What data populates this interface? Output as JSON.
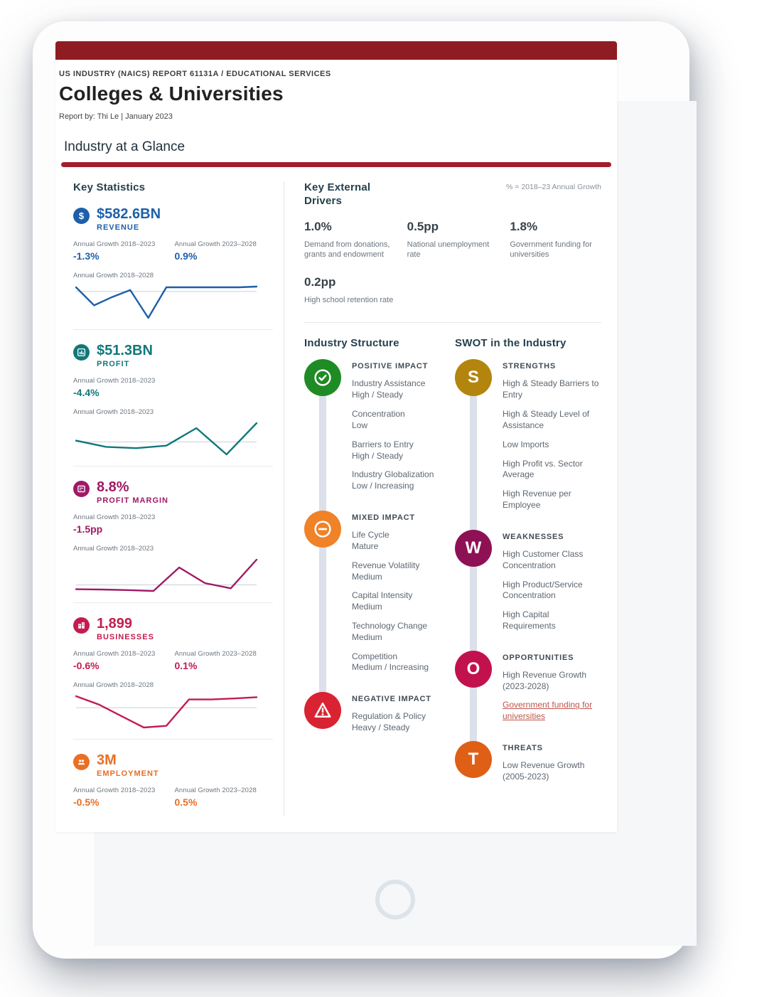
{
  "colors": {
    "maroon": "#8e1c22",
    "rule": "#a31e2d",
    "blue": "#1d5fa9",
    "teal": "#11787b",
    "magenta": "#9e1a66",
    "crimson": "#c31d50",
    "orange": "#e96f24",
    "green": "#1f8b24",
    "amber": "#f08228",
    "red": "#da2332",
    "gold": "#b3850e",
    "plum": "#8e1155",
    "opp": "#c2124e",
    "threat": "#df5f16"
  },
  "report": {
    "eyebrow": "US INDUSTRY (NAICS) REPORT 61131A / EDUCATIONAL SERVICES",
    "title": "Colleges & Universities",
    "byline": "Report by: Thi Le  |  January 2023",
    "section_title": "Industry at a Glance"
  },
  "key_statistics": {
    "heading": "Key Statistics",
    "stats": [
      {
        "value": "$582.6BN",
        "label": "REVENUE",
        "icon": "dollar-icon",
        "growths": [
          {
            "label": "Annual Growth 2018–2023",
            "value": "-1.3%"
          },
          {
            "label": "Annual Growth 2023–2028",
            "value": "0.9%"
          }
        ],
        "spark_label": "Annual Growth 2018–2028"
      },
      {
        "value": "$51.3BN",
        "label": "PROFIT",
        "icon": "bar-chart-icon",
        "growths": [
          {
            "label": "Annual Growth 2018–2023",
            "value": "-4.4%"
          }
        ],
        "spark_label": "Annual Growth 2018–2023"
      },
      {
        "value": "8.8%",
        "label": "PROFIT MARGIN",
        "icon": "ledger-icon",
        "growths": [
          {
            "label": "Annual Growth 2018–2023",
            "value": "-1.5pp"
          }
        ],
        "spark_label": "Annual Growth 2018–2023"
      },
      {
        "value": "1,899",
        "label": "BUSINESSES",
        "icon": "building-icon",
        "growths": [
          {
            "label": "Annual Growth 2018–2023",
            "value": "-0.6%"
          },
          {
            "label": "Annual Growth 2023–2028",
            "value": "0.1%"
          }
        ],
        "spark_label": "Annual Growth 2018–2028"
      },
      {
        "value": "3M",
        "label": "EMPLOYMENT",
        "icon": "people-icon",
        "growths": [
          {
            "label": "Annual Growth 2018–2023",
            "value": "-0.5%"
          },
          {
            "label": "Annual Growth 2023–2028",
            "value": "0.5%"
          }
        ]
      }
    ]
  },
  "drivers": {
    "heading": "Key External Drivers",
    "note": "% = 2018–23 Annual Growth",
    "items": [
      {
        "value": "1.0%",
        "label": "Demand from donations, grants and endowment"
      },
      {
        "value": "0.5pp",
        "label": "National unemployment rate"
      },
      {
        "value": "1.8%",
        "label": "Government funding for universities"
      },
      {
        "value": "0.2pp",
        "label": "High school retention rate"
      }
    ]
  },
  "structure": {
    "heading": "Industry Structure",
    "groups": [
      {
        "title": "POSITIVE IMPACT",
        "icon": "check-circle-icon",
        "items": [
          {
            "name": "Industry Assistance",
            "value": "High / Steady"
          },
          {
            "name": "Concentration",
            "value": "Low"
          },
          {
            "name": "Barriers to Entry",
            "value": "High / Steady"
          },
          {
            "name": "Industry Globalization",
            "value": "Low / Increasing"
          }
        ]
      },
      {
        "title": "MIXED IMPACT",
        "icon": "minus-circle-icon",
        "items": [
          {
            "name": "Life Cycle",
            "value": "Mature"
          },
          {
            "name": "Revenue Volatility",
            "value": "Medium"
          },
          {
            "name": "Capital Intensity",
            "value": "Medium"
          },
          {
            "name": "Technology Change",
            "value": "Medium"
          },
          {
            "name": "Competition",
            "value": "Medium / Increasing"
          }
        ]
      },
      {
        "title": "NEGATIVE IMPACT",
        "icon": "warning-triangle-icon",
        "items": [
          {
            "name": "Regulation & Policy",
            "value": "Heavy / Steady"
          }
        ]
      }
    ]
  },
  "swot": {
    "heading": "SWOT in the Industry",
    "groups": [
      {
        "letter": "S",
        "title": "STRENGTHS",
        "items": [
          {
            "text": "High & Steady Barriers to Entry"
          },
          {
            "text": "High & Steady Level of Assistance"
          },
          {
            "text": "Low Imports"
          },
          {
            "text": "High Profit vs. Sector Average"
          },
          {
            "text": "High Revenue per Employee"
          }
        ]
      },
      {
        "letter": "W",
        "title": "WEAKNESSES",
        "items": [
          {
            "text": "High Customer Class Concentration"
          },
          {
            "text": "High Product/Service Concentration"
          },
          {
            "text": "High Capital Requirements"
          }
        ]
      },
      {
        "letter": "O",
        "title": "OPPORTUNITIES",
        "items": [
          {
            "text": "High Revenue Growth (2023-2028)"
          },
          {
            "text": "Government funding for universities",
            "link": true
          }
        ]
      },
      {
        "letter": "T",
        "title": "THREATS",
        "items": [
          {
            "text": "Low Revenue Growth (2005-2023)"
          }
        ]
      }
    ]
  },
  "chart_data": [
    {
      "id": "revenue",
      "type": "line",
      "title": "Revenue Annual Growth 2018–2028",
      "x_range": "2018–2028",
      "values": [
        0.3,
        -1.0,
        -0.4,
        0.1,
        -1.9,
        0.3,
        0.3,
        0.3,
        0.3,
        0.3,
        0.35
      ],
      "baseline": 0,
      "color": "#1d5fa9"
    },
    {
      "id": "profit",
      "type": "line",
      "title": "Profit Annual Growth 2018–2023",
      "x_range": "2018–2023",
      "values": [
        0.05,
        -0.2,
        -0.25,
        -0.15,
        0.55,
        -0.5,
        0.75
      ],
      "baseline": 0,
      "color": "#11787b"
    },
    {
      "id": "margin",
      "type": "line",
      "title": "Profit Margin Annual Growth 2018–2023",
      "x_range": "2018–2023",
      "values": [
        -0.25,
        -0.27,
        -0.3,
        -0.35,
        1.0,
        0.1,
        -0.2,
        1.45
      ],
      "baseline": 0,
      "color": "#9e1a66"
    },
    {
      "id": "businesses",
      "type": "line",
      "title": "Businesses Annual Growth 2018–2028",
      "x_range": "2018–2028",
      "values": [
        0.35,
        0.1,
        -0.25,
        -0.6,
        -0.55,
        0.25,
        0.25,
        0.28,
        0.32
      ],
      "baseline": 0,
      "color": "#c31d50"
    }
  ]
}
